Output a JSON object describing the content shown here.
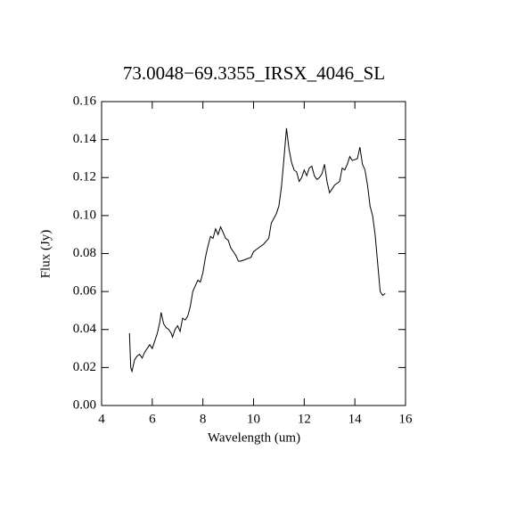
{
  "chart_data": {
    "type": "line",
    "title": "73.0048−69.3355_IRSX_4046_SL",
    "x_label": "Wavelength (um)",
    "y_label": "Flux (Jy)",
    "xlim": [
      4,
      16
    ],
    "xticks": [
      4,
      6,
      8,
      10,
      12,
      14,
      16
    ],
    "ylim": [
      0,
      0.16
    ],
    "yticks": [
      {
        "value": 0,
        "label": "0.00"
      },
      0.02,
      0.04,
      0.06,
      0.08,
      {
        "value": 0.1,
        "label": "0.10"
      },
      0.12,
      0.14,
      0.16
    ],
    "series": [
      {
        "color": "#000000",
        "x": [
          5.1,
          5.15,
          5.2,
          5.3,
          5.4,
          5.5,
          5.6,
          5.7,
          5.8,
          5.9,
          6.0,
          6.1,
          6.2,
          6.3,
          6.35,
          6.45,
          6.55,
          6.65,
          6.75,
          6.8,
          6.9,
          7.0,
          7.1,
          7.2,
          7.3,
          7.4,
          7.5,
          7.6,
          7.7,
          7.8,
          7.9,
          8.0,
          8.1,
          8.2,
          8.3,
          8.4,
          8.5,
          8.6,
          8.7,
          8.8,
          8.9,
          9.0,
          9.1,
          9.2,
          9.3,
          9.4,
          9.5,
          9.7,
          9.9,
          10.0,
          10.2,
          10.4,
          10.6,
          10.7,
          10.9,
          11.0,
          11.1,
          11.2,
          11.3,
          11.4,
          11.5,
          11.6,
          11.7,
          11.8,
          11.9,
          12.0,
          12.1,
          12.2,
          12.3,
          12.4,
          12.5,
          12.6,
          12.7,
          12.8,
          12.9,
          13.0,
          13.1,
          13.2,
          13.3,
          13.4,
          13.5,
          13.6,
          13.7,
          13.8,
          13.9,
          14.1,
          14.2,
          14.3,
          14.4,
          14.5,
          14.6,
          14.7,
          14.8,
          14.9,
          15.0,
          15.1,
          15.2
        ],
        "values": [
          0.038,
          0.02,
          0.018,
          0.024,
          0.026,
          0.027,
          0.025,
          0.028,
          0.03,
          0.032,
          0.03,
          0.034,
          0.038,
          0.044,
          0.049,
          0.043,
          0.041,
          0.04,
          0.038,
          0.036,
          0.04,
          0.042,
          0.039,
          0.046,
          0.045,
          0.047,
          0.052,
          0.06,
          0.063,
          0.066,
          0.065,
          0.07,
          0.078,
          0.084,
          0.089,
          0.088,
          0.093,
          0.09,
          0.094,
          0.091,
          0.088,
          0.087,
          0.083,
          0.081,
          0.079,
          0.076,
          0.076,
          0.077,
          0.078,
          0.081,
          0.083,
          0.085,
          0.088,
          0.096,
          0.101,
          0.105,
          0.115,
          0.13,
          0.146,
          0.135,
          0.128,
          0.124,
          0.123,
          0.118,
          0.12,
          0.124,
          0.121,
          0.125,
          0.126,
          0.121,
          0.119,
          0.12,
          0.122,
          0.127,
          0.118,
          0.112,
          0.114,
          0.116,
          0.117,
          0.118,
          0.125,
          0.124,
          0.127,
          0.131,
          0.129,
          0.13,
          0.136,
          0.127,
          0.124,
          0.116,
          0.105,
          0.1,
          0.09,
          0.075,
          0.06,
          0.058,
          0.059
        ]
      }
    ]
  }
}
